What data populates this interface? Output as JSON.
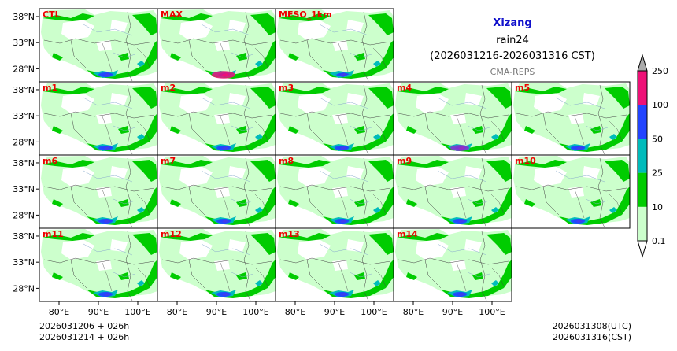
{
  "chart_data": {
    "type": "heatmap",
    "title": "Xizang",
    "variable": "rain24",
    "period": "(2026031216-2026031316 CST)",
    "source": "CMA-REPS",
    "panels": [
      {
        "label": "CTL",
        "intensity": 2
      },
      {
        "label": "MAX",
        "intensity": 4
      },
      {
        "label": "MESO_1km",
        "intensity": 1
      },
      {
        "label": "m1",
        "intensity": 2
      },
      {
        "label": "m2",
        "intensity": 2
      },
      {
        "label": "m3",
        "intensity": 2
      },
      {
        "label": "m4",
        "intensity": 3
      },
      {
        "label": "m5",
        "intensity": 2
      },
      {
        "label": "m6",
        "intensity": 2
      },
      {
        "label": "m7",
        "intensity": 2
      },
      {
        "label": "m8",
        "intensity": 2
      },
      {
        "label": "m9",
        "intensity": 2
      },
      {
        "label": "m10",
        "intensity": 2
      },
      {
        "label": "m11",
        "intensity": 2
      },
      {
        "label": "m12",
        "intensity": 2
      },
      {
        "label": "m13",
        "intensity": 2
      },
      {
        "label": "m14",
        "intensity": 2
      }
    ],
    "lat_ticks": [
      "38°N",
      "33°N",
      "28°N"
    ],
    "lon_ticks": [
      "80°E",
      "90°E",
      "100°E"
    ],
    "lat_range": [
      25.5,
      39.5
    ],
    "lon_range": [
      75,
      105
    ],
    "colorbar": {
      "levels": [
        "0.1",
        "10",
        "25",
        "50",
        "100",
        "250"
      ],
      "colors": [
        "#ccffcc",
        "#00cc00",
        "#00bbbb",
        "#2244ff",
        "#ee1177"
      ],
      "under_color": "#ffffff",
      "over_color": "#aaaaaa"
    }
  },
  "footer": {
    "init_utc": "2026031206  +  026h",
    "init_cst": "2026031214  +  026h",
    "valid_utc": "2026031308(UTC)",
    "valid_cst": "2026031316(CST)"
  }
}
